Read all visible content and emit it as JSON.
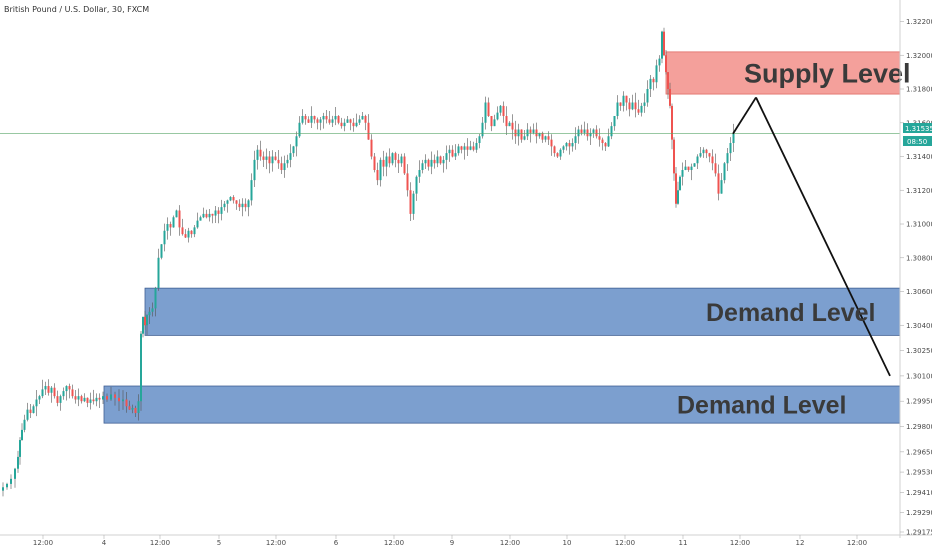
{
  "header": {
    "title": "British Pound / U.S. Dollar, 30, FXCM"
  },
  "price_badge": {
    "price": "1.31535",
    "countdown": "08:50"
  },
  "colors": {
    "up": "#26a69a",
    "down": "#ef5350",
    "wick": "#555555",
    "supply_fill": "#f4a09b",
    "demand_fill": "#7c9fcf",
    "demand_stroke": "#3f5f93",
    "price_line": "#5aa86a"
  },
  "zones": [
    {
      "name": "supply",
      "label": "Supply Level",
      "from": 1.3177,
      "to": 1.3202
    },
    {
      "name": "demand-1",
      "label": "Demand Level",
      "from": 1.3034,
      "to": 1.3062
    },
    {
      "name": "demand-2",
      "label": "Demand Level",
      "from": 1.2982,
      "to": 1.3004
    }
  ],
  "chart_data": {
    "type": "candlestick",
    "symbol": "British Pound / U.S. Dollar",
    "interval": "30",
    "source": "FXCM",
    "ylim": [
      1.29175,
      1.3228
    ],
    "y_ticks": [
      "1.32200",
      "1.32000",
      "1.31800",
      "1.31600",
      "1.31400",
      "1.31200",
      "1.31000",
      "1.30800",
      "1.30600",
      "1.30400",
      "1.30250",
      "1.30100",
      "1.29950",
      "1.29800",
      "1.29650",
      "1.29530",
      "1.29410",
      "1.29290",
      "1.29175"
    ],
    "x_ticks": [
      "12:00",
      "4",
      "12:00",
      "5",
      "12:00",
      "6",
      "12:00",
      "9",
      "12:00",
      "10",
      "12:00",
      "11",
      "12:00",
      "12",
      "12:00"
    ],
    "last_price": 1.31535,
    "price_path": [
      [
        0,
        1.2942
      ],
      [
        4,
        1.2944
      ],
      [
        8,
        1.2946
      ],
      [
        12,
        1.2949
      ],
      [
        16,
        1.2955
      ],
      [
        18,
        1.2962
      ],
      [
        20,
        1.2972
      ],
      [
        22,
        1.2978
      ],
      [
        25,
        1.2984
      ],
      [
        28,
        1.299
      ],
      [
        31,
        1.2988
      ],
      [
        34,
        1.2992
      ],
      [
        37,
        1.2996
      ],
      [
        40,
        1.2998
      ],
      [
        43,
        1.3002
      ],
      [
        46,
        1.3004
      ],
      [
        49,
        1.3
      ],
      [
        52,
        1.3003
      ],
      [
        55,
        1.2998
      ],
      [
        58,
        1.2994
      ],
      [
        61,
        1.2998
      ],
      [
        64,
        1.3001
      ],
      [
        67,
        1.3004
      ],
      [
        70,
        1.3002
      ],
      [
        73,
        1.2998
      ],
      [
        76,
        1.2996
      ],
      [
        79,
        1.2998
      ],
      [
        82,
        1.2995
      ],
      [
        85,
        1.2997
      ],
      [
        88,
        1.2994
      ],
      [
        91,
        1.2996
      ],
      [
        94,
        1.2995
      ],
      [
        97,
        1.2997
      ],
      [
        100,
        1.2996
      ],
      [
        104,
        1.2998
      ],
      [
        108,
        1.2996
      ],
      [
        112,
        1.2999
      ],
      [
        116,
        1.2997
      ],
      [
        120,
        1.2995
      ],
      [
        124,
        1.2996
      ],
      [
        127,
        1.2992
      ],
      [
        130,
        1.299
      ],
      [
        133,
        1.2991
      ],
      [
        136,
        1.2988
      ],
      [
        139,
        1.2995
      ],
      [
        141,
        1.3035
      ],
      [
        143,
        1.3045
      ],
      [
        145,
        1.304
      ],
      [
        147,
        1.3046
      ],
      [
        150,
        1.3048
      ],
      [
        153,
        1.305
      ],
      [
        156,
        1.3062
      ],
      [
        159,
        1.308
      ],
      [
        162,
        1.3088
      ],
      [
        165,
        1.3096
      ],
      [
        168,
        1.31
      ],
      [
        171,
        1.3098
      ],
      [
        174,
        1.3104
      ],
      [
        177,
        1.3108
      ],
      [
        180,
        1.3098
      ],
      [
        183,
        1.3094
      ],
      [
        186,
        1.3092
      ],
      [
        189,
        1.3096
      ],
      [
        192,
        1.3094
      ],
      [
        195,
        1.3098
      ],
      [
        198,
        1.3102
      ],
      [
        201,
        1.3104
      ],
      [
        204,
        1.3106
      ],
      [
        207,
        1.3104
      ],
      [
        210,
        1.3106
      ],
      [
        213,
        1.3105
      ],
      [
        216,
        1.3108
      ],
      [
        219,
        1.3106
      ],
      [
        222,
        1.311
      ],
      [
        225,
        1.3112
      ],
      [
        228,
        1.3114
      ],
      [
        231,
        1.3116
      ],
      [
        234,
        1.3114
      ],
      [
        237,
        1.3112
      ],
      [
        240,
        1.311
      ],
      [
        243,
        1.3112
      ],
      [
        246,
        1.311
      ],
      [
        249,
        1.3114
      ],
      [
        252,
        1.3126
      ],
      [
        255,
        1.3138
      ],
      [
        258,
        1.3144
      ],
      [
        261,
        1.314
      ],
      [
        264,
        1.3138
      ],
      [
        267,
        1.314
      ],
      [
        270,
        1.3136
      ],
      [
        273,
        1.314
      ],
      [
        276,
        1.3138
      ],
      [
        279,
        1.3136
      ],
      [
        282,
        1.3132
      ],
      [
        285,
        1.3136
      ],
      [
        288,
        1.3138
      ],
      [
        291,
        1.3142
      ],
      [
        294,
        1.3146
      ],
      [
        297,
        1.3152
      ],
      [
        300,
        1.316
      ],
      [
        303,
        1.3164
      ],
      [
        306,
        1.3162
      ],
      [
        309,
        1.316
      ],
      [
        312,
        1.3164
      ],
      [
        315,
        1.3162
      ],
      [
        318,
        1.316
      ],
      [
        321,
        1.3162
      ],
      [
        324,
        1.3164
      ],
      [
        327,
        1.3162
      ],
      [
        330,
        1.316
      ],
      [
        333,
        1.3162
      ],
      [
        336,
        1.3164
      ],
      [
        339,
        1.316
      ],
      [
        342,
        1.3158
      ],
      [
        345,
        1.316
      ],
      [
        348,
        1.3162
      ],
      [
        351,
        1.316
      ],
      [
        354,
        1.3158
      ],
      [
        357,
        1.316
      ],
      [
        360,
        1.3162
      ],
      [
        363,
        1.3164
      ],
      [
        366,
        1.316
      ],
      [
        369,
        1.315
      ],
      [
        372,
        1.314
      ],
      [
        375,
        1.3132
      ],
      [
        378,
        1.3126
      ],
      [
        381,
        1.3138
      ],
      [
        384,
        1.3134
      ],
      [
        387,
        1.314
      ],
      [
        390,
        1.3136
      ],
      [
        393,
        1.3142
      ],
      [
        396,
        1.3138
      ],
      [
        399,
        1.3136
      ],
      [
        402,
        1.314
      ],
      [
        405,
        1.313
      ],
      [
        408,
        1.312
      ],
      [
        411,
        1.3106
      ],
      [
        414,
        1.3118
      ],
      [
        417,
        1.3128
      ],
      [
        420,
        1.3132
      ],
      [
        423,
        1.3136
      ],
      [
        426,
        1.3138
      ],
      [
        429,
        1.3134
      ],
      [
        432,
        1.3138
      ],
      [
        435,
        1.3136
      ],
      [
        438,
        1.314
      ],
      [
        441,
        1.3136
      ],
      [
        444,
        1.3138
      ],
      [
        447,
        1.3142
      ],
      [
        450,
        1.3144
      ],
      [
        453,
        1.314
      ],
      [
        456,
        1.3142
      ],
      [
        459,
        1.3146
      ],
      [
        462,
        1.3144
      ],
      [
        465,
        1.3146
      ],
      [
        468,
        1.3144
      ],
      [
        471,
        1.3146
      ],
      [
        474,
        1.3144
      ],
      [
        477,
        1.3148
      ],
      [
        480,
        1.3152
      ],
      [
        483,
        1.316
      ],
      [
        486,
        1.3172
      ],
      [
        489,
        1.3164
      ],
      [
        492,
        1.3158
      ],
      [
        495,
        1.3162
      ],
      [
        498,
        1.3166
      ],
      [
        501,
        1.317
      ],
      [
        504,
        1.3164
      ],
      [
        507,
        1.3158
      ],
      [
        510,
        1.316
      ],
      [
        513,
        1.3156
      ],
      [
        516,
        1.3152
      ],
      [
        519,
        1.3156
      ],
      [
        522,
        1.315
      ],
      [
        525,
        1.3152
      ],
      [
        528,
        1.3156
      ],
      [
        531,
        1.3154
      ],
      [
        534,
        1.3156
      ],
      [
        537,
        1.3152
      ],
      [
        540,
        1.3154
      ],
      [
        543,
        1.315
      ],
      [
        546,
        1.3152
      ],
      [
        549,
        1.315
      ],
      [
        552,
        1.3146
      ],
      [
        555,
        1.3142
      ],
      [
        558,
        1.314
      ],
      [
        561,
        1.3144
      ],
      [
        564,
        1.3146
      ],
      [
        567,
        1.3148
      ],
      [
        570,
        1.3146
      ],
      [
        573,
        1.3148
      ],
      [
        576,
        1.3152
      ],
      [
        579,
        1.3156
      ],
      [
        582,
        1.3154
      ],
      [
        585,
        1.3156
      ],
      [
        588,
        1.3152
      ],
      [
        591,
        1.3154
      ],
      [
        594,
        1.3156
      ],
      [
        597,
        1.3152
      ],
      [
        600,
        1.315
      ],
      [
        603,
        1.3148
      ],
      [
        606,
        1.3146
      ],
      [
        609,
        1.3152
      ],
      [
        612,
        1.3158
      ],
      [
        615,
        1.3164
      ],
      [
        618,
        1.3172
      ],
      [
        621,
        1.317
      ],
      [
        624,
        1.3176
      ],
      [
        627,
        1.3172
      ],
      [
        630,
        1.3168
      ],
      [
        633,
        1.3172
      ],
      [
        636,
        1.3168
      ],
      [
        639,
        1.3166
      ],
      [
        642,
        1.317
      ],
      [
        645,
        1.3172
      ],
      [
        648,
        1.318
      ],
      [
        651,
        1.3186
      ],
      [
        654,
        1.3184
      ],
      [
        657,
        1.3194
      ],
      [
        660,
        1.3198
      ],
      [
        662,
        1.3214
      ],
      [
        664,
        1.32
      ],
      [
        666,
        1.319
      ],
      [
        668,
        1.318
      ],
      [
        670,
        1.317
      ],
      [
        672,
        1.315
      ],
      [
        674,
        1.313
      ],
      [
        676,
        1.3112
      ],
      [
        678,
        1.312
      ],
      [
        680,
        1.3128
      ],
      [
        683,
        1.3132
      ],
      [
        686,
        1.3134
      ],
      [
        689,
        1.3132
      ],
      [
        692,
        1.3134
      ],
      [
        695,
        1.3136
      ],
      [
        698,
        1.314
      ],
      [
        701,
        1.3142
      ],
      [
        704,
        1.3144
      ],
      [
        707,
        1.3142
      ],
      [
        710,
        1.314
      ],
      [
        713,
        1.3136
      ],
      [
        716,
        1.313
      ],
      [
        719,
        1.3118
      ],
      [
        722,
        1.3126
      ],
      [
        725,
        1.3136
      ],
      [
        728,
        1.3142
      ],
      [
        731,
        1.3148
      ],
      [
        734,
        1.31535
      ]
    ],
    "arrow_path": [
      [
        756,
        1.3175
      ],
      [
        733,
        1.31535
      ],
      [
        756,
        1.3175
      ],
      [
        890,
        1.301
      ]
    ],
    "grid": false,
    "legend": "none"
  }
}
